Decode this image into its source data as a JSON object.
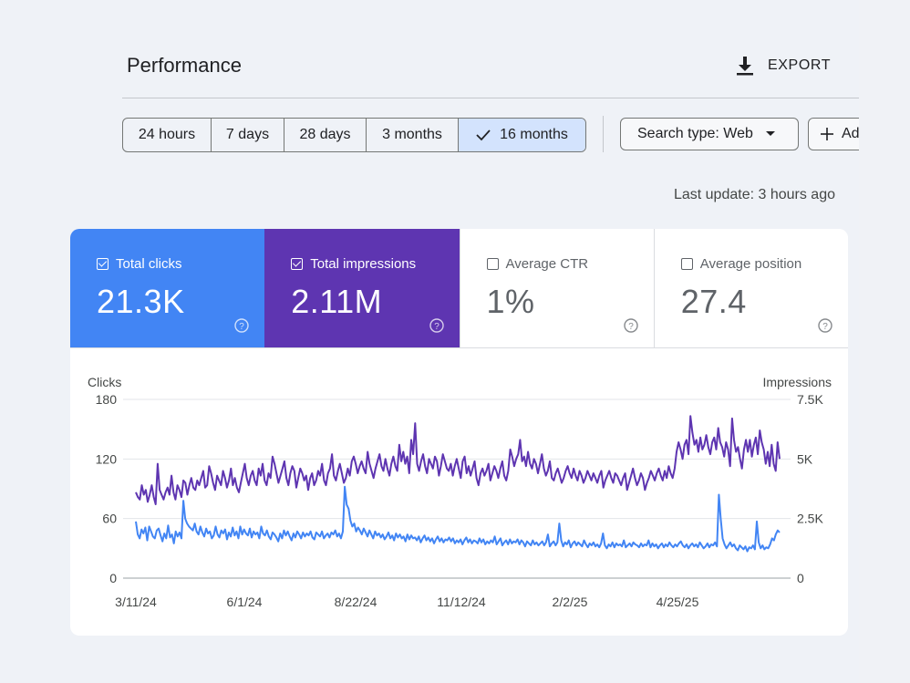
{
  "header": {
    "title": "Performance",
    "export_label": "EXPORT"
  },
  "date_ranges": [
    {
      "label": "24 hours",
      "active": false
    },
    {
      "label": "7 days",
      "active": false
    },
    {
      "label": "28 days",
      "active": false
    },
    {
      "label": "3 months",
      "active": false
    },
    {
      "label": "16 months",
      "active": true
    }
  ],
  "filters": {
    "search_type": "Search type: Web",
    "add_label": "Ad"
  },
  "last_update": "Last update: 3 hours ago",
  "metrics": [
    {
      "label": "Total clicks",
      "value": "21.3K",
      "checked": true,
      "color": "#4285f4"
    },
    {
      "label": "Total impressions",
      "value": "2.11M",
      "checked": true,
      "color": "#5e35b1"
    },
    {
      "label": "Average CTR",
      "value": "1%",
      "checked": false,
      "color": "#ffffff"
    },
    {
      "label": "Average position",
      "value": "27.4",
      "checked": false,
      "color": "#ffffff"
    }
  ],
  "chart_data": {
    "type": "line",
    "ylabel_left": "Clicks",
    "ylabel_right": "Impressions",
    "yticks_left": [
      "180",
      "120",
      "60",
      "0"
    ],
    "yticks_right": [
      "7.5K",
      "5K",
      "2.5K",
      "0"
    ],
    "ylim_left": [
      0,
      180
    ],
    "ylim_right": [
      0,
      7500
    ],
    "xticks": [
      "3/11/24",
      "6/1/24",
      "8/22/24",
      "11/12/24",
      "2/2/25",
      "4/25/25"
    ],
    "x_start": "3/11/24",
    "x_end": "6/27/25",
    "grid": true,
    "legend": "none",
    "series": [
      {
        "name": "Total clicks",
        "axis": "left",
        "color": "#4285f4",
        "values": [
          57,
          44,
          40,
          49,
          45,
          51,
          38,
          52,
          47,
          42,
          40,
          48,
          50,
          43,
          37,
          45,
          40,
          53,
          41,
          44,
          35,
          47,
          42,
          46,
          40,
          78,
          60,
          55,
          52,
          50,
          48,
          55,
          47,
          44,
          52,
          46,
          42,
          50,
          45,
          47,
          40,
          43,
          52,
          44,
          41,
          48,
          45,
          49,
          39,
          46,
          42,
          51,
          43,
          47,
          40,
          52,
          44,
          49,
          45,
          43,
          50,
          41,
          47,
          44,
          46,
          40,
          52,
          45,
          43,
          48,
          42,
          39,
          46,
          44,
          41,
          37,
          45,
          40,
          48,
          43,
          47,
          42,
          38,
          45,
          41,
          47,
          44,
          40,
          46,
          42,
          45,
          43,
          47,
          41,
          39,
          46,
          44,
          42,
          47,
          40,
          43,
          45,
          41,
          46,
          44,
          48,
          42,
          45,
          40,
          47,
          92,
          74,
          70,
          58,
          52,
          55,
          47,
          51,
          48,
          44,
          50,
          46,
          42,
          48,
          44,
          40,
          47,
          43,
          45,
          41,
          44,
          39,
          42,
          46,
          40,
          43,
          38,
          45,
          41,
          44,
          40,
          42,
          37,
          44,
          39,
          43,
          40,
          41,
          38,
          42,
          36,
          40,
          43,
          38,
          41,
          37,
          40,
          35,
          39,
          42,
          37,
          40,
          36,
          39,
          38,
          41,
          37,
          40,
          35,
          38,
          36,
          39,
          34,
          38,
          41,
          36,
          39,
          35,
          38,
          37,
          35,
          40,
          36,
          39,
          34,
          37,
          35,
          38,
          36,
          42,
          34,
          37,
          40,
          33,
          36,
          38,
          34,
          39,
          35,
          37,
          36,
          39,
          34,
          38,
          36,
          32,
          37,
          35,
          33,
          38,
          34,
          36,
          33,
          35,
          37,
          33,
          36,
          44,
          32,
          35,
          37,
          33,
          36,
          55,
          38,
          32,
          36,
          34,
          38,
          31,
          35,
          37,
          33,
          36,
          34,
          32,
          38,
          34,
          31,
          35,
          33,
          36,
          32,
          34,
          31,
          35,
          45,
          33,
          30,
          34,
          32,
          36,
          31,
          35,
          33,
          34,
          32,
          38,
          31,
          33,
          35,
          32,
          36,
          34,
          33,
          31,
          35,
          32,
          34,
          33,
          38,
          31,
          35,
          32,
          34,
          30,
          33,
          35,
          31,
          34,
          32,
          36,
          33,
          31,
          34,
          32,
          35,
          37,
          33,
          31,
          34,
          30,
          33,
          35,
          32,
          34,
          31,
          36,
          33,
          30,
          32,
          35,
          31,
          34,
          33,
          36,
          32,
          84,
          60,
          40,
          34,
          30,
          33,
          36,
          32,
          34,
          30,
          28,
          33,
          31,
          29,
          32,
          27,
          31,
          30,
          33,
          29,
          57,
          36,
          30,
          33,
          29,
          31,
          30,
          34,
          40,
          38,
          44,
          48,
          46
        ]
      },
      {
        "name": "Total impressions",
        "axis": "right",
        "color": "#5e35b1",
        "values": [
          3600,
          3400,
          3300,
          3900,
          3500,
          3700,
          3200,
          3500,
          3900,
          3400,
          3100,
          4800,
          3700,
          3500,
          3300,
          3600,
          3800,
          3500,
          4300,
          3600,
          3300,
          3900,
          3700,
          3400,
          4100,
          4000,
          3500,
          3900,
          4200,
          3800,
          3700,
          4100,
          3900,
          4200,
          4500,
          3800,
          3900,
          4700,
          4400,
          4000,
          3700,
          4300,
          4100,
          3900,
          4500,
          4200,
          3800,
          4100,
          4600,
          3900,
          4200,
          3800,
          3600,
          4000,
          4400,
          4800,
          4200,
          3900,
          4300,
          4500,
          4100,
          3900,
          4600,
          4300,
          4800,
          4100,
          3900,
          4400,
          4200,
          5100,
          4800,
          4400,
          4000,
          4300,
          4600,
          4900,
          4200,
          3900,
          4400,
          4700,
          4500,
          3800,
          4200,
          4600,
          4400,
          4100,
          4300,
          3700,
          4200,
          4400,
          3900,
          4100,
          4500,
          4300,
          4800,
          4100,
          3900,
          4400,
          4600,
          5200,
          4300,
          4100,
          4500,
          4800,
          4400,
          4000,
          4200,
          4600,
          4300,
          4900,
          5100,
          4800,
          4400,
          4700,
          4900,
          4600,
          4400,
          5300,
          4800,
          4500,
          4200,
          4600,
          4900,
          5200,
          4700,
          4500,
          5000,
          4600,
          4300,
          4800,
          5100,
          4700,
          4500,
          5600,
          4900,
          5300,
          4800,
          5100,
          4400,
          5800,
          5200,
          6500,
          4800,
          4500,
          4900,
          5200,
          4700,
          4400,
          5000,
          4800,
          4600,
          5100,
          4900,
          4300,
          4700,
          5200,
          4900,
          4600,
          4500,
          4800,
          4300,
          4700,
          5000,
          4600,
          4200,
          4900,
          5100,
          4400,
          4700,
          4300,
          4600,
          4900,
          4200,
          3900,
          4400,
          4600,
          4300,
          4500,
          4800,
          4100,
          4400,
          4700,
          4500,
          4200,
          4600,
          4900,
          4300,
          4100,
          4500,
          5400,
          5100,
          4700,
          5000,
          5200,
          5800,
          4900,
          5100,
          4700,
          5300,
          4800,
          4600,
          5000,
          4800,
          4400,
          4800,
          5200,
          4600,
          4300,
          4500,
          4900,
          4200,
          4100,
          4400,
          4600,
          4300,
          4000,
          4200,
          4500,
          4700,
          4400,
          4200,
          4600,
          4300,
          4100,
          4500,
          4300,
          4000,
          4200,
          4500,
          4300,
          4100,
          4400,
          4200,
          4000,
          4300,
          4500,
          3800,
          4100,
          4300,
          4500,
          4200,
          4000,
          4400,
          4300,
          4100,
          3900,
          4200,
          4400,
          3700,
          4000,
          4300,
          4600,
          4200,
          3900,
          4100,
          4400,
          4200,
          3700,
          4000,
          4200,
          4500,
          4300,
          4100,
          4400,
          4600,
          4300,
          4100,
          4500,
          4200,
          4700,
          4400,
          4200,
          4600,
          5300,
          5700,
          5400,
          5000,
          5600,
          5800,
          5200,
          6800,
          6100,
          5600,
          5800,
          5300,
          5900,
          5400,
          5600,
          6000,
          5500,
          5200,
          5700,
          5900,
          5400,
          6300,
          5700,
          5500,
          5100,
          5700,
          5400,
          4700,
          6700,
          5800,
          5300,
          5500,
          5000,
          4600,
          5400,
          5800,
          5300,
          5800,
          5100,
          5600,
          5900,
          5200,
          6200,
          5700,
          5400,
          4800,
          5300,
          4700,
          5600,
          4800,
          4500,
          5700,
          5000
        ]
      }
    ]
  }
}
